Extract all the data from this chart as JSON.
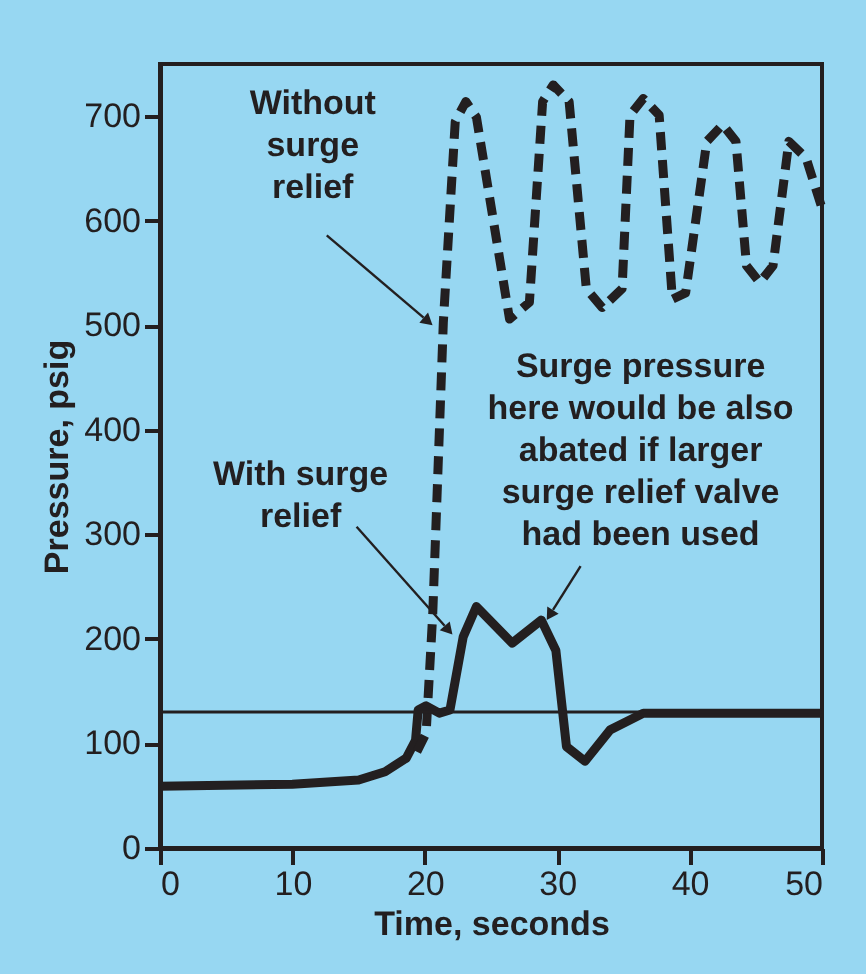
{
  "chart_data": {
    "type": "line",
    "xlabel": "Time, seconds",
    "ylabel": "Pressure, psig",
    "xlim": [
      0,
      50
    ],
    "ylim": [
      0,
      750
    ],
    "xticks": [
      0,
      10,
      20,
      30,
      40,
      50
    ],
    "yticks": [
      0,
      100,
      200,
      300,
      400,
      500,
      600,
      700
    ],
    "marker": "none",
    "series": [
      {
        "color": "#231f20",
        "line_style": "solid",
        "x": [
          0,
          10,
          15,
          17,
          18.6,
          19.3,
          19.5,
          20.1,
          21.1,
          21.9,
          22.9,
          23.9,
          26.6,
          28.8,
          29.9,
          30.7,
          32.1,
          34,
          36.5,
          50
        ],
        "values": [
          59,
          61,
          65,
          73,
          86,
          103,
          132,
          136,
          129,
          132,
          202,
          231,
          196,
          218,
          189,
          97,
          83,
          113,
          129,
          129
        ]
      },
      {
        "color": "#231f20",
        "line_style": "dashed",
        "x": [
          19.4,
          20.1,
          20.6,
          21.4,
          22.3,
          23.1,
          23.9,
          26.4,
          27.9,
          28.9,
          29.7,
          30.9,
          32.2,
          33.4,
          34.9,
          35.5,
          36.5,
          37.7,
          38.7,
          39.7,
          41.3,
          42.5,
          43.5,
          44.3,
          45.3,
          46.3,
          47.5,
          48.8,
          50
        ],
        "values": [
          92,
          110,
          224,
          503,
          695,
          714,
          699,
          506,
          522,
          714,
          730,
          714,
          535,
          517,
          535,
          701,
          717,
          701,
          525,
          531,
          676,
          692,
          676,
          557,
          541,
          557,
          676,
          660,
          612
        ]
      }
    ],
    "ref_lines": [
      {
        "axis": "y",
        "value": 130,
        "color": "#231f20",
        "line_style": "solid"
      }
    ],
    "annotations": [
      {
        "text": "Without\nsurge\nrelief",
        "x": 20.6,
        "y": 500
      },
      {
        "text": "With surge\nrelief",
        "x": 22.1,
        "y": 204
      },
      {
        "text": "Surge pressure\nhere would be also\nabated if larger\nsurge relief valve\nhad been used",
        "x": 29.2,
        "y": 218
      }
    ]
  }
}
